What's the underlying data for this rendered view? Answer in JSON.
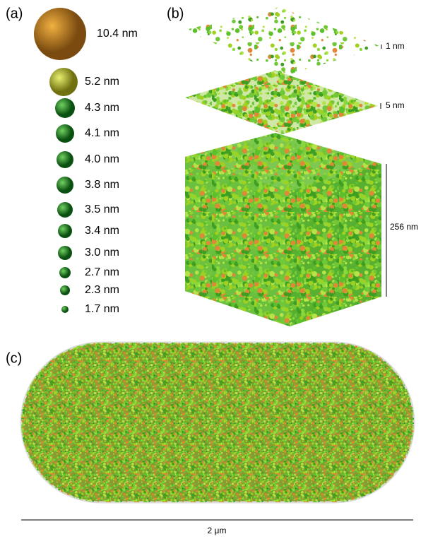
{
  "panels": [
    {
      "label": "(a)",
      "sizes": [
        "10.4 nm",
        "5.2 nm",
        "4.3 nm",
        "4.1 nm",
        "4.0 nm",
        "3.8 nm",
        "3.5 nm",
        "3.4 nm",
        "3.0 nm",
        "2.7 nm",
        "2.3 nm",
        "1.7 nm"
      ]
    },
    {
      "label": "(b)",
      "slab_labels": [
        "1 nm",
        "5 nm"
      ],
      "cube_label": "256 nm"
    },
    {
      "label": "(c)",
      "scale_label": "2 μm"
    }
  ]
}
